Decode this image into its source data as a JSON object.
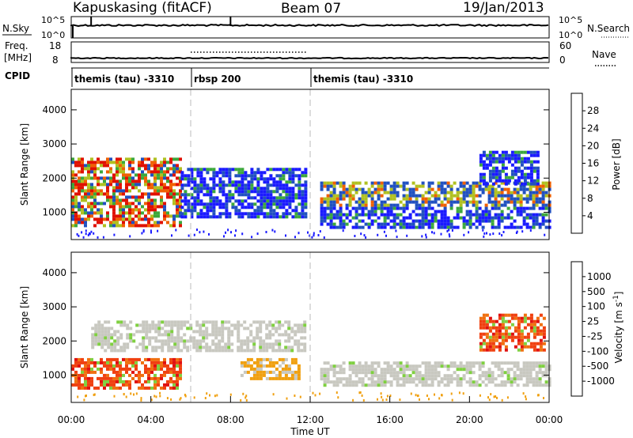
{
  "header": {
    "title": "Kapuskasing (fitACF)",
    "beam": "Beam 07",
    "date": "19/Jan/2013"
  },
  "status_panels": {
    "nsky_label": "N.Sky",
    "nsky_ticks": [
      "10^5",
      "10^0"
    ],
    "nsearch_label": "N.Search",
    "nsearch_ticks": [
      "10^5",
      "10^0"
    ],
    "freq_label": "Freq.",
    "freq_unit": "[MHz]",
    "freq_ticks": [
      "18",
      "8"
    ],
    "nave_label": "Nave",
    "nave_ticks": [
      "60",
      "0"
    ],
    "cpid_label": "CPID",
    "cpid_segments": [
      {
        "label": "themis (tau) -3310",
        "start": 0,
        "end": 6
      },
      {
        "label": "rbsp 200",
        "start": 6,
        "end": 12
      },
      {
        "label": "themis (tau) -3310",
        "start": 12,
        "end": 24
      }
    ]
  },
  "chart_data": [
    {
      "type": "heatmap",
      "quantity": "power",
      "ylabel": "Slant Range [km]",
      "ylim": [
        200,
        4600
      ],
      "yticks": [
        1000,
        2000,
        3000,
        4000
      ],
      "xlim": [
        0,
        24
      ],
      "colorbar_label": "Power [dB]",
      "colorbar_ticks": [
        "4",
        "8",
        "12",
        "16",
        "20",
        "24",
        "28"
      ],
      "colorbar_colors": [
        "#1a1aff",
        "#2050c0",
        "#2e8a78",
        "#3ca83c",
        "#b0c020",
        "#f0a000",
        "#f06000",
        "#e01000"
      ],
      "regions": [
        {
          "t0": 0.0,
          "t1": 5.5,
          "r0": 600,
          "r1": 2600,
          "level": "strong"
        },
        {
          "t0": 5.5,
          "t1": 11.8,
          "r0": 900,
          "r1": 2300,
          "level": "weak"
        },
        {
          "t0": 12.5,
          "t1": 24.0,
          "r0": 600,
          "r1": 1900,
          "level": "mixed"
        },
        {
          "t0": 20.5,
          "t1": 23.5,
          "r0": 1800,
          "r1": 2800,
          "level": "weak"
        }
      ]
    },
    {
      "type": "heatmap",
      "quantity": "velocity",
      "ylabel": "Slant Range [km]",
      "ylim": [
        200,
        4600
      ],
      "yticks": [
        1000,
        2000,
        3000,
        4000
      ],
      "xlim": [
        0,
        24
      ],
      "xticks": [
        "00:00",
        "04:00",
        "08:00",
        "12:00",
        "16:00",
        "20:00",
        "00:00"
      ],
      "xlabel": "Time UT",
      "colorbar_label": "Velocity [m s^-1]",
      "colorbar_ticks": [
        "1000",
        "500",
        "100",
        "25",
        "-25",
        "-100",
        "-500",
        "-1000"
      ],
      "colorbar_colors": [
        "#2040c0",
        "#2c6aa8",
        "#3aa040",
        "#7fd040",
        "#c8c8c0",
        "#f0a010",
        "#f07010",
        "#f04010",
        "#e01010"
      ],
      "regions": [
        {
          "t0": 0.0,
          "t1": 5.5,
          "r0": 600,
          "r1": 1500,
          "level": "negative"
        },
        {
          "t0": 1.0,
          "t1": 11.8,
          "r0": 1700,
          "r1": 2600,
          "level": "ground"
        },
        {
          "t0": 8.5,
          "t1": 11.5,
          "r0": 900,
          "r1": 1500,
          "level": "weak-negative"
        },
        {
          "t0": 12.5,
          "t1": 24.0,
          "r0": 700,
          "r1": 1400,
          "level": "ground"
        },
        {
          "t0": 20.5,
          "t1": 23.8,
          "r0": 1700,
          "r1": 2800,
          "level": "negative"
        }
      ]
    }
  ]
}
